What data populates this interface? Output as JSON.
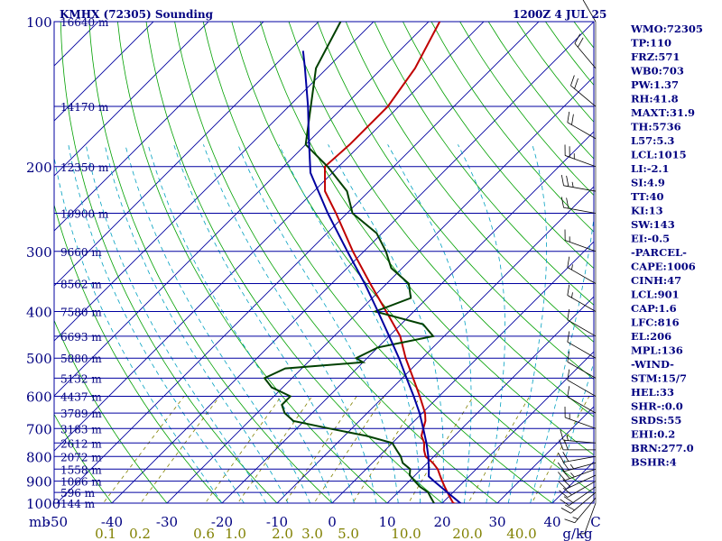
{
  "chart_data": {
    "type": "line",
    "title_left": "KMHX (72305) Sounding",
    "title_right": "1200Z  4 JUL 25",
    "y_axis_unit": "mb",
    "x_axis_unit": "C",
    "mixing_ratio_unit": "g/kg",
    "pressure_ticks": [
      100,
      200,
      300,
      400,
      500,
      600,
      700,
      800,
      900,
      1000
    ],
    "temp_ticks": [
      -50,
      -40,
      -30,
      -20,
      -10,
      0,
      10,
      20,
      30,
      40
    ],
    "mixing_ratio_ticks": [
      "0.1",
      "0.2",
      "0.6",
      "1.0",
      "2.0",
      "3.0",
      "5.0",
      "10.0",
      "20.0",
      "40.0"
    ],
    "height_labels": [
      {
        "p": 100,
        "label": "16640 m"
      },
      {
        "p": 150,
        "label": "14170 m"
      },
      {
        "p": 200,
        "label": "12350 m"
      },
      {
        "p": 250,
        "label": "10900 m"
      },
      {
        "p": 300,
        "label": "9660 m"
      },
      {
        "p": 350,
        "label": "8562 m"
      },
      {
        "p": 400,
        "label": "7580 m"
      },
      {
        "p": 450,
        "label": "6693 m"
      },
      {
        "p": 500,
        "label": "5880 m"
      },
      {
        "p": 550,
        "label": "5132 m"
      },
      {
        "p": 600,
        "label": "4437 m"
      },
      {
        "p": 650,
        "label": "3789 m"
      },
      {
        "p": 700,
        "label": "3183 m"
      },
      {
        "p": 750,
        "label": "2612 m"
      },
      {
        "p": 800,
        "label": "2072 m"
      },
      {
        "p": 850,
        "label": "1558 m"
      },
      {
        "p": 900,
        "label": "1066 m"
      },
      {
        "p": 950,
        "label": "596 m"
      },
      {
        "p": 1000,
        "label": "144 m"
      }
    ],
    "series": [
      {
        "id": "temperature",
        "color": "#c00000",
        "points": [
          [
            1013,
            24.5
          ],
          [
            1000,
            22
          ],
          [
            975,
            20.5
          ],
          [
            950,
            19
          ],
          [
            925,
            17.5
          ],
          [
            900,
            16
          ],
          [
            875,
            14.5
          ],
          [
            850,
            13
          ],
          [
            825,
            11
          ],
          [
            800,
            8.5
          ],
          [
            775,
            7
          ],
          [
            750,
            5.8
          ],
          [
            725,
            4
          ],
          [
            700,
            3
          ],
          [
            675,
            2
          ],
          [
            650,
            0.5
          ],
          [
            600,
            -3.5
          ],
          [
            550,
            -8
          ],
          [
            500,
            -13
          ],
          [
            450,
            -18
          ],
          [
            400,
            -25
          ],
          [
            350,
            -33
          ],
          [
            300,
            -42
          ],
          [
            250,
            -52
          ],
          [
            225,
            -58
          ],
          [
            200,
            -62.5
          ],
          [
            180,
            -62
          ],
          [
            150,
            -62
          ],
          [
            125,
            -64
          ],
          [
            100,
            -68
          ]
        ]
      },
      {
        "id": "dewpoint",
        "color": "#004000",
        "points": [
          [
            1013,
            19
          ],
          [
            1000,
            18.5
          ],
          [
            975,
            17
          ],
          [
            950,
            15.5
          ],
          [
            925,
            13
          ],
          [
            900,
            11
          ],
          [
            875,
            9
          ],
          [
            850,
            8
          ],
          [
            825,
            5.5
          ],
          [
            800,
            4
          ],
          [
            775,
            2
          ],
          [
            750,
            0
          ],
          [
            725,
            -6
          ],
          [
            700,
            -14
          ],
          [
            675,
            -22
          ],
          [
            650,
            -25
          ],
          [
            625,
            -27
          ],
          [
            600,
            -27
          ],
          [
            575,
            -32
          ],
          [
            550,
            -35
          ],
          [
            525,
            -33
          ],
          [
            510,
            -20
          ],
          [
            500,
            -22
          ],
          [
            475,
            -20
          ],
          [
            450,
            -12
          ],
          [
            425,
            -16
          ],
          [
            400,
            -27
          ],
          [
            375,
            -23
          ],
          [
            350,
            -26
          ],
          [
            325,
            -32
          ],
          [
            300,
            -36
          ],
          [
            275,
            -41
          ],
          [
            250,
            -49
          ],
          [
            225,
            -54
          ],
          [
            200,
            -62
          ],
          [
            180,
            -70
          ],
          [
            150,
            -76
          ],
          [
            125,
            -82
          ],
          [
            100,
            -86
          ]
        ]
      },
      {
        "id": "parcel",
        "color": "#0000a0",
        "points": [
          [
            1013,
            24.5
          ],
          [
            1000,
            23.3
          ],
          [
            950,
            19
          ],
          [
            900,
            14.5
          ],
          [
            880,
            12.7
          ],
          [
            850,
            11.4
          ],
          [
            800,
            9
          ],
          [
            750,
            6.2
          ],
          [
            700,
            3
          ],
          [
            650,
            -0.5
          ],
          [
            600,
            -4.6
          ],
          [
            550,
            -9.2
          ],
          [
            500,
            -14.2
          ],
          [
            450,
            -20
          ],
          [
            400,
            -26.5
          ],
          [
            350,
            -34
          ],
          [
            300,
            -43
          ],
          [
            250,
            -53.5
          ],
          [
            206,
            -64
          ],
          [
            175,
            -70.5
          ],
          [
            150,
            -76.5
          ],
          [
            125,
            -84
          ],
          [
            115,
            -87.5
          ]
        ]
      }
    ],
    "indices": [
      "WMO:72305",
      "TP:110",
      "FRZ:571",
      "WB0:703",
      "PW:1.37",
      "RH:41.8",
      "MAXT:31.9",
      "TH:5736",
      "L57:5.3",
      "LCL:1015",
      "LI:-2.1",
      "SI:4.9",
      "TT:40",
      "KI:13",
      "SW:143",
      "EI:-0.5",
      "-PARCEL-",
      "CAPE:1006",
      "CINH:47",
      "LCL:901",
      "CAP:1.6",
      "LFC:816",
      "EL:206",
      "MPL:136",
      "-WIND-",
      "STM:15/7",
      "HEL:33",
      "SHR-:0.0",
      "SRDS:55",
      "EHI:0.2",
      "BRN:277.0",
      "BSHR:4"
    ],
    "wind_barbs": [
      {
        "p": 1000,
        "dir": 200,
        "spd": 5
      },
      {
        "p": 975,
        "dir": 220,
        "spd": 15
      },
      {
        "p": 950,
        "dir": 230,
        "spd": 20
      },
      {
        "p": 925,
        "dir": 235,
        "spd": 20
      },
      {
        "p": 900,
        "dir": 240,
        "spd": 20
      },
      {
        "p": 875,
        "dir": 245,
        "spd": 20
      },
      {
        "p": 850,
        "dir": 250,
        "spd": 25
      },
      {
        "p": 825,
        "dir": 255,
        "spd": 25
      },
      {
        "p": 800,
        "dir": 260,
        "spd": 20
      },
      {
        "p": 775,
        "dir": 270,
        "spd": 20
      },
      {
        "p": 750,
        "dir": 275,
        "spd": 15
      },
      {
        "p": 700,
        "dir": 290,
        "spd": 15
      },
      {
        "p": 650,
        "dir": 300,
        "spd": 10
      },
      {
        "p": 600,
        "dir": 300,
        "spd": 10
      },
      {
        "p": 550,
        "dir": 300,
        "spd": 10
      },
      {
        "p": 500,
        "dir": 300,
        "spd": 10
      },
      {
        "p": 450,
        "dir": 300,
        "spd": 10
      },
      {
        "p": 400,
        "dir": 300,
        "spd": 15
      },
      {
        "p": 350,
        "dir": 300,
        "spd": 15
      },
      {
        "p": 300,
        "dir": 290,
        "spd": 15
      },
      {
        "p": 250,
        "dir": 280,
        "spd": 20
      },
      {
        "p": 225,
        "dir": 280,
        "spd": 25
      },
      {
        "p": 200,
        "dir": 290,
        "spd": 25
      },
      {
        "p": 175,
        "dir": 300,
        "spd": 20
      },
      {
        "p": 150,
        "dir": 310,
        "spd": 20
      },
      {
        "p": 125,
        "dir": 320,
        "spd": 20
      },
      {
        "p": 100,
        "dir": 330,
        "spd": 15
      }
    ]
  },
  "colors": {
    "isobar": "#0000a0",
    "isotherm": "#0000a0",
    "dry_adiabat": "#00a000",
    "moist_adiabat": "#00a0c0",
    "mixing_ratio": "#808000",
    "label_blue": "#000080",
    "mixing_label": "#808000"
  }
}
